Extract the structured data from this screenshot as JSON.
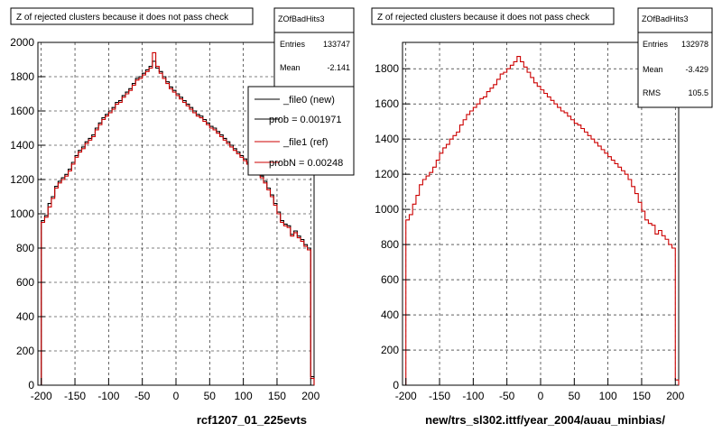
{
  "chart_data": [
    {
      "type": "histogram",
      "title": "Z of rejected clusters  because it does not pass check",
      "xlabel": "rcf1207_01_225evts",
      "ylabel": "",
      "xlim": [
        -205,
        205
      ],
      "ylim": [
        0,
        2000
      ],
      "x_ticks": [
        -200,
        -150,
        -100,
        -50,
        0,
        50,
        100,
        150,
        200
      ],
      "y_ticks": [
        0,
        200,
        400,
        600,
        800,
        1000,
        1200,
        1400,
        1600,
        1800,
        2000
      ],
      "grid": true,
      "stats": {
        "name": "ZOfBadHits3",
        "rows": [
          {
            "label": "Entries",
            "value": "133747"
          },
          {
            "label": "Mean",
            "value": "-2.141"
          }
        ]
      },
      "legend": {
        "placement": "top-right",
        "entries": [
          {
            "text": "_file0 (new)",
            "color": "#000000",
            "marker": true
          },
          {
            "text": "prob = 0.001971",
            "color": "#000000",
            "marker": false
          },
          {
            "text": "_file1 (ref)",
            "color": "#cc0000",
            "marker": true
          },
          {
            "text": "probN = 0.00248",
            "color": "#cc0000",
            "marker": false
          }
        ]
      },
      "bin_edges_from": -200,
      "bin_width": 5,
      "series": [
        {
          "name": "_file0 (new)",
          "color": "#000000",
          "values": [
            960,
            990,
            1060,
            1100,
            1160,
            1190,
            1210,
            1230,
            1260,
            1300,
            1340,
            1370,
            1390,
            1420,
            1440,
            1460,
            1500,
            1530,
            1560,
            1580,
            1600,
            1620,
            1650,
            1660,
            1690,
            1710,
            1730,
            1760,
            1790,
            1800,
            1820,
            1840,
            1860,
            1890,
            1850,
            1830,
            1800,
            1770,
            1740,
            1720,
            1700,
            1680,
            1660,
            1640,
            1620,
            1600,
            1580,
            1570,
            1550,
            1530,
            1510,
            1500,
            1480,
            1460,
            1440,
            1420,
            1400,
            1380,
            1360,
            1340,
            1320,
            1300,
            1280,
            1260,
            1240,
            1220,
            1190,
            1150,
            1110,
            1060,
            1010,
            960,
            940,
            930,
            880,
            900,
            870,
            850,
            820,
            800,
            50
          ]
        },
        {
          "name": "_file1 (ref)",
          "color": "#cc0000",
          "values": [
            950,
            980,
            1040,
            1090,
            1150,
            1180,
            1200,
            1220,
            1250,
            1290,
            1330,
            1360,
            1380,
            1410,
            1430,
            1450,
            1490,
            1520,
            1550,
            1570,
            1590,
            1610,
            1640,
            1650,
            1680,
            1700,
            1720,
            1750,
            1780,
            1790,
            1810,
            1830,
            1850,
            1940,
            1860,
            1820,
            1790,
            1760,
            1730,
            1710,
            1690,
            1670,
            1650,
            1630,
            1610,
            1590,
            1570,
            1560,
            1540,
            1520,
            1500,
            1490,
            1470,
            1450,
            1430,
            1410,
            1390,
            1370,
            1350,
            1330,
            1310,
            1290,
            1270,
            1250,
            1230,
            1210,
            1180,
            1140,
            1100,
            1050,
            1000,
            950,
            930,
            920,
            870,
            890,
            860,
            840,
            810,
            790,
            40
          ]
        }
      ]
    },
    {
      "type": "histogram",
      "title": "Z of rejected clusters  because it does not pass check",
      "xlabel": "new/trs_sl302.ittf/year_2004/auau_minbias/",
      "ylabel": "",
      "xlim": [
        -205,
        205
      ],
      "ylim": [
        0,
        1950
      ],
      "x_ticks": [
        -200,
        -150,
        -100,
        -50,
        0,
        50,
        100,
        150,
        200
      ],
      "y_ticks": [
        0,
        200,
        400,
        600,
        800,
        1000,
        1200,
        1400,
        1600,
        1800
      ],
      "grid": true,
      "stats": {
        "name": "ZOfBadHits3",
        "rows": [
          {
            "label": "Entries",
            "value": "132978"
          },
          {
            "label": "Mean",
            "value": "-3.429"
          },
          {
            "label": "RMS",
            "value": "105.5"
          }
        ]
      },
      "bin_edges_from": -200,
      "bin_width": 5,
      "series": [
        {
          "name": "",
          "color": "#cc0000",
          "values": [
            940,
            970,
            1030,
            1080,
            1140,
            1170,
            1190,
            1210,
            1240,
            1280,
            1320,
            1350,
            1370,
            1400,
            1420,
            1440,
            1480,
            1510,
            1540,
            1560,
            1580,
            1600,
            1630,
            1640,
            1670,
            1690,
            1710,
            1740,
            1770,
            1780,
            1800,
            1820,
            1840,
            1870,
            1840,
            1810,
            1780,
            1750,
            1720,
            1700,
            1680,
            1660,
            1640,
            1620,
            1600,
            1580,
            1560,
            1550,
            1530,
            1510,
            1490,
            1480,
            1460,
            1440,
            1420,
            1400,
            1380,
            1360,
            1340,
            1320,
            1300,
            1280,
            1260,
            1240,
            1220,
            1200,
            1170,
            1130,
            1090,
            1040,
            990,
            940,
            920,
            910,
            860,
            880,
            850,
            830,
            800,
            780,
            30
          ]
        }
      ]
    }
  ]
}
